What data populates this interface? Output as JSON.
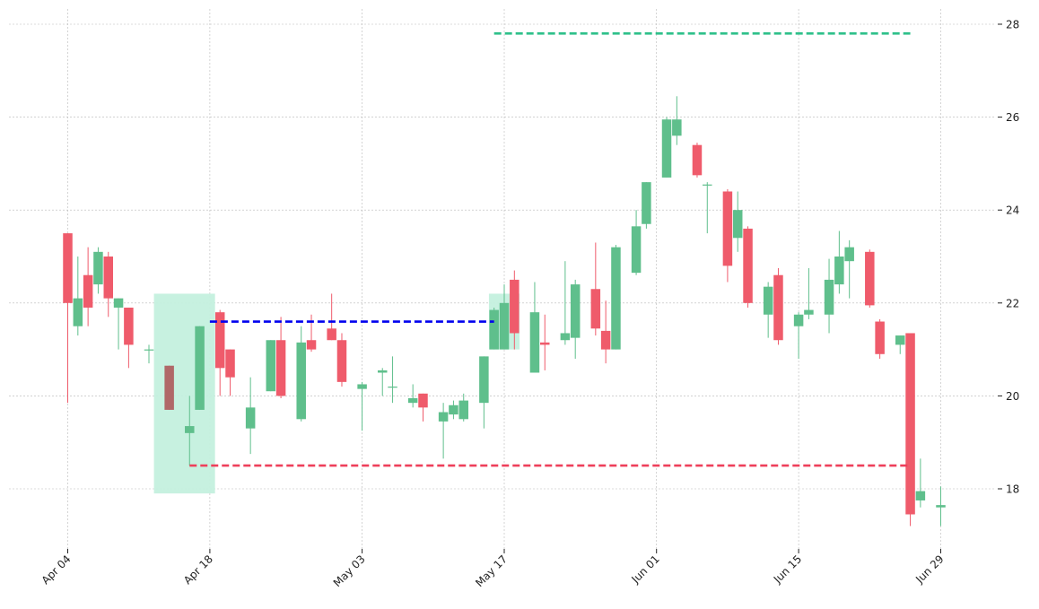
{
  "chart_data": {
    "type": "candlestick",
    "title": "",
    "xlabel": "",
    "ylabel": "",
    "ylim": [
      16.6,
      28.3
    ],
    "y_ticks": [
      18,
      20,
      22,
      24,
      26,
      28
    ],
    "x_ticks": [
      {
        "date": "2021-04-04",
        "label": "Apr 04"
      },
      {
        "date": "2021-04-18",
        "label": "Apr 18"
      },
      {
        "date": "2021-05-03",
        "label": "May 03"
      },
      {
        "date": "2021-05-17",
        "label": "May 17"
      },
      {
        "date": "2021-06-01",
        "label": "Jun 01"
      },
      {
        "date": "2021-06-15",
        "label": "Jun 15"
      },
      {
        "date": "2021-06-29",
        "label": "Jun 29"
      }
    ],
    "grid": true,
    "colors": {
      "up": "#5fbf8c",
      "down": "#ef5b6b",
      "highlight_down": "#b06868",
      "highlight_zone": "#c4f0de",
      "resistance_line": "#0000ee",
      "support_line": "#ee3f5a",
      "target_line": "#2ec08a",
      "grid": "#b8b8b8"
    },
    "candles": [
      {
        "date": "2021-04-04",
        "open": 23.5,
        "high": 23.5,
        "low": 19.85,
        "close": 22.0
      },
      {
        "date": "2021-04-05",
        "open": 21.5,
        "high": 23.0,
        "low": 21.3,
        "close": 22.1
      },
      {
        "date": "2021-04-06",
        "open": 22.6,
        "high": 23.2,
        "low": 21.5,
        "close": 21.9
      },
      {
        "date": "2021-04-07",
        "open": 22.4,
        "high": 23.2,
        "low": 22.2,
        "close": 23.1
      },
      {
        "date": "2021-04-08",
        "open": 23.0,
        "high": 23.1,
        "low": 21.7,
        "close": 22.1
      },
      {
        "date": "2021-04-09",
        "open": 21.9,
        "high": 22.1,
        "low": 21.0,
        "close": 22.1
      },
      {
        "date": "2021-04-10",
        "open": 21.9,
        "high": 21.9,
        "low": 20.6,
        "close": 21.1
      },
      {
        "date": "2021-04-12",
        "open": 21.0,
        "high": 21.1,
        "low": 20.7,
        "close": 21.0
      },
      {
        "date": "2021-04-14",
        "open": 20.65,
        "high": 20.65,
        "low": 19.7,
        "close": 19.7,
        "highlight": true
      },
      {
        "date": "2021-04-16",
        "open": 19.2,
        "high": 20.0,
        "low": 18.5,
        "close": 19.35
      },
      {
        "date": "2021-04-17",
        "open": 19.7,
        "high": 21.5,
        "low": 19.7,
        "close": 21.5
      },
      {
        "date": "2021-04-19",
        "open": 21.8,
        "high": 21.85,
        "low": 20.0,
        "close": 20.6
      },
      {
        "date": "2021-04-20",
        "open": 21.0,
        "high": 21.0,
        "low": 20.0,
        "close": 20.4
      },
      {
        "date": "2021-04-22",
        "open": 19.3,
        "high": 20.4,
        "low": 18.75,
        "close": 19.75
      },
      {
        "date": "2021-04-24",
        "open": 20.1,
        "high": 21.2,
        "low": 20.1,
        "close": 21.2
      },
      {
        "date": "2021-04-25",
        "open": 21.2,
        "high": 21.7,
        "low": 19.95,
        "close": 20.0
      },
      {
        "date": "2021-04-27",
        "open": 19.5,
        "high": 21.5,
        "low": 19.45,
        "close": 21.15
      },
      {
        "date": "2021-04-28",
        "open": 21.2,
        "high": 21.75,
        "low": 20.95,
        "close": 21.0
      },
      {
        "date": "2021-04-30",
        "open": 21.45,
        "high": 22.2,
        "low": 21.2,
        "close": 21.2
      },
      {
        "date": "2021-05-01",
        "open": 21.2,
        "high": 21.35,
        "low": 20.2,
        "close": 20.3
      },
      {
        "date": "2021-05-03",
        "open": 20.15,
        "high": 20.3,
        "low": 19.25,
        "close": 20.25
      },
      {
        "date": "2021-05-05",
        "open": 20.5,
        "high": 20.6,
        "low": 20.0,
        "close": 20.55
      },
      {
        "date": "2021-05-06",
        "open": 20.2,
        "high": 20.85,
        "low": 19.85,
        "close": 20.2
      },
      {
        "date": "2021-05-08",
        "open": 19.85,
        "high": 20.25,
        "low": 19.75,
        "close": 19.95
      },
      {
        "date": "2021-05-09",
        "open": 20.05,
        "high": 20.05,
        "low": 19.45,
        "close": 19.75
      },
      {
        "date": "2021-05-11",
        "open": 19.45,
        "high": 19.85,
        "low": 18.65,
        "close": 19.65
      },
      {
        "date": "2021-05-12",
        "open": 19.6,
        "high": 19.9,
        "low": 19.5,
        "close": 19.8
      },
      {
        "date": "2021-05-13",
        "open": 19.5,
        "high": 20.05,
        "low": 19.45,
        "close": 19.9
      },
      {
        "date": "2021-05-15",
        "open": 19.85,
        "high": 20.85,
        "low": 19.3,
        "close": 20.85
      },
      {
        "date": "2021-05-16",
        "open": 21.0,
        "high": 21.9,
        "low": 21.0,
        "close": 21.85
      },
      {
        "date": "2021-05-17",
        "open": 21.0,
        "high": 22.4,
        "low": 21.0,
        "close": 22.0,
        "highlight": true
      },
      {
        "date": "2021-05-18",
        "open": 22.5,
        "high": 22.7,
        "low": 21.0,
        "close": 21.35
      },
      {
        "date": "2021-05-20",
        "open": 20.5,
        "high": 22.45,
        "low": 20.5,
        "close": 21.8
      },
      {
        "date": "2021-05-21",
        "open": 21.15,
        "high": 21.75,
        "low": 20.55,
        "close": 21.1
      },
      {
        "date": "2021-05-23",
        "open": 21.2,
        "high": 22.9,
        "low": 21.1,
        "close": 21.35
      },
      {
        "date": "2021-05-24",
        "open": 21.25,
        "high": 22.5,
        "low": 20.8,
        "close": 22.4
      },
      {
        "date": "2021-05-26",
        "open": 22.3,
        "high": 23.3,
        "low": 21.3,
        "close": 21.45
      },
      {
        "date": "2021-05-27",
        "open": 21.4,
        "high": 22.05,
        "low": 20.7,
        "close": 21.0
      },
      {
        "date": "2021-05-28",
        "open": 21.0,
        "high": 23.25,
        "low": 21.0,
        "close": 23.2
      },
      {
        "date": "2021-05-30",
        "open": 22.65,
        "high": 24.0,
        "low": 22.6,
        "close": 23.65
      },
      {
        "date": "2021-05-31",
        "open": 23.7,
        "high": 24.6,
        "low": 23.6,
        "close": 24.6
      },
      {
        "date": "2021-06-02",
        "open": 24.7,
        "high": 26.0,
        "low": 24.7,
        "close": 25.95
      },
      {
        "date": "2021-06-03",
        "open": 25.6,
        "high": 26.45,
        "low": 25.4,
        "close": 25.95
      },
      {
        "date": "2021-06-05",
        "open": 25.4,
        "high": 25.45,
        "low": 24.7,
        "close": 24.75
      },
      {
        "date": "2021-06-06",
        "open": 24.55,
        "high": 24.6,
        "low": 23.5,
        "close": 24.55
      },
      {
        "date": "2021-06-08",
        "open": 24.4,
        "high": 24.45,
        "low": 22.45,
        "close": 22.8
      },
      {
        "date": "2021-06-09",
        "open": 23.4,
        "high": 24.4,
        "low": 23.1,
        "close": 24.0
      },
      {
        "date": "2021-06-10",
        "open": 23.6,
        "high": 23.65,
        "low": 21.9,
        "close": 22.0
      },
      {
        "date": "2021-06-12",
        "open": 21.75,
        "high": 22.45,
        "low": 21.25,
        "close": 22.35
      },
      {
        "date": "2021-06-13",
        "open": 22.6,
        "high": 22.75,
        "low": 21.1,
        "close": 21.2
      },
      {
        "date": "2021-06-15",
        "open": 21.5,
        "high": 21.8,
        "low": 20.8,
        "close": 21.75
      },
      {
        "date": "2021-06-16",
        "open": 21.75,
        "high": 22.75,
        "low": 21.65,
        "close": 21.85
      },
      {
        "date": "2021-06-18",
        "open": 21.75,
        "high": 22.95,
        "low": 21.35,
        "close": 22.5
      },
      {
        "date": "2021-06-19",
        "open": 22.4,
        "high": 23.55,
        "low": 22.2,
        "close": 23.0
      },
      {
        "date": "2021-06-20",
        "open": 22.9,
        "high": 23.35,
        "low": 22.1,
        "close": 23.2
      },
      {
        "date": "2021-06-22",
        "open": 23.1,
        "high": 23.15,
        "low": 21.9,
        "close": 21.95
      },
      {
        "date": "2021-06-23",
        "open": 21.6,
        "high": 21.65,
        "low": 20.8,
        "close": 20.9
      },
      {
        "date": "2021-06-25",
        "open": 21.1,
        "high": 21.3,
        "low": 20.9,
        "close": 21.3
      },
      {
        "date": "2021-06-26",
        "open": 21.35,
        "high": 21.35,
        "low": 17.2,
        "close": 17.45
      },
      {
        "date": "2021-06-27",
        "open": 17.75,
        "high": 18.65,
        "low": 17.6,
        "close": 17.95
      },
      {
        "date": "2021-06-29",
        "open": 17.6,
        "high": 18.05,
        "low": 17.2,
        "close": 17.65
      }
    ],
    "zones": [
      {
        "start": "2021-04-13",
        "end": "2021-04-18",
        "y0": 17.9,
        "y1": 22.2
      },
      {
        "start": "2021-05-16",
        "end": "2021-05-18",
        "y0": 21.0,
        "y1": 22.2
      }
    ],
    "levels": [
      {
        "role": "resistance",
        "start": "2021-04-18",
        "end": "2021-05-16",
        "value": 21.6
      },
      {
        "role": "support",
        "start": "2021-04-16",
        "end": "2021-06-26",
        "value": 18.5
      },
      {
        "role": "target",
        "start": "2021-05-16",
        "end": "2021-06-26",
        "value": 27.8
      }
    ]
  }
}
